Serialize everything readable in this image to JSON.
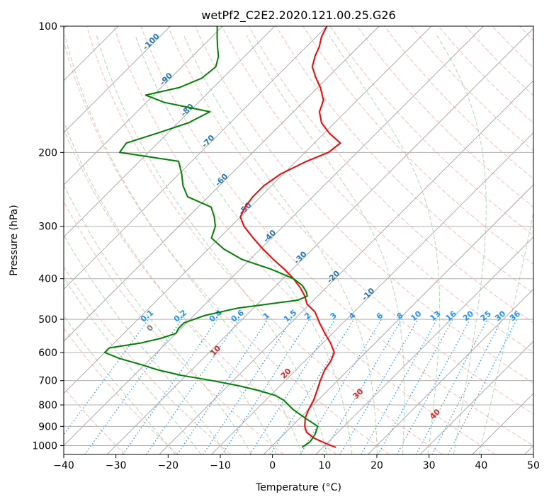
{
  "chart_data": {
    "type": "skew-t",
    "title": "wetPf2_C2E2.2020.121.00.25.G26",
    "xlabel": "Temperature (°C)",
    "ylabel": "Pressure (hPa)",
    "xlim": [
      -40,
      50
    ],
    "ylim": [
      1050,
      100
    ],
    "y_scale": "log",
    "x_ticks": [
      "−40",
      "−30",
      "−20",
      "−10",
      "0",
      "10",
      "20",
      "30",
      "40",
      "50"
    ],
    "y_ticks": [
      {
        "p": 100,
        "label": "100"
      },
      {
        "p": 200,
        "label": "200"
      },
      {
        "p": 300,
        "label": "300"
      },
      {
        "p": 400,
        "label": "400"
      },
      {
        "p": 500,
        "label": "500"
      },
      {
        "p": 600,
        "label": "600"
      },
      {
        "p": 700,
        "label": "700"
      },
      {
        "p": 800,
        "label": "800"
      },
      {
        "p": 900,
        "label": "900"
      },
      {
        "p": 1000,
        "label": "1000"
      }
    ],
    "grid": true,
    "colors": {
      "temperature": "#ff0000",
      "dewpoint": "#008000",
      "isotherm": "#aaaaaa",
      "dry_adiabat": "#fa8072",
      "moist_adiabat": "#90c890",
      "mixing_ratio": "#1e90ff",
      "isotherm_label": "#1f77b4",
      "theta_label": "#d62728",
      "mixing_label": "#1e90ff"
    },
    "isotherm_labels": [
      "-100",
      "-90",
      "-80",
      "-70",
      "-60",
      "-50",
      "-40",
      "-30",
      "-20",
      "-10"
    ],
    "isotherm_label_values": [
      -100,
      -90,
      -80,
      -70,
      -60,
      -50,
      -40,
      -30,
      -20,
      -10
    ],
    "theta_labels": [
      "0",
      "10",
      "20",
      "30",
      "40"
    ],
    "theta_label_values": [
      0,
      10,
      20,
      30,
      40
    ],
    "mixing_ratio_labels": [
      "0.1",
      "0.2",
      "0.4",
      "0.6",
      "1",
      "1.5",
      "2",
      "3",
      "4",
      "6",
      "8",
      "10",
      "13",
      "16",
      "20",
      "25",
      "30",
      "36"
    ],
    "mixing_ratio_values": [
      0.1,
      0.2,
      0.4,
      0.6,
      1,
      1.5,
      2,
      3,
      4,
      6,
      8,
      10,
      13,
      16,
      20,
      25,
      30,
      36
    ],
    "series": [
      {
        "key": "temperature",
        "p": [
          1010,
          990,
          960,
          930,
          900,
          860,
          820,
          780,
          740,
          700,
          660,
          630,
          600,
          570,
          540,
          510,
          480,
          460,
          440,
          420,
          400,
          380,
          360,
          340,
          320,
          300,
          285,
          270,
          255,
          240,
          225,
          210,
          200,
          190,
          180,
          170,
          160,
          150,
          140,
          132,
          125,
          118,
          112,
          106,
          100
        ],
        "t": [
          12.5,
          10.0,
          6.5,
          4.0,
          2.5,
          1.0,
          0.0,
          -0.8,
          -2.0,
          -3.3,
          -4.5,
          -5.0,
          -6.0,
          -8.5,
          -11.5,
          -14.5,
          -17.5,
          -20.5,
          -22.5,
          -25.0,
          -28.0,
          -31.5,
          -35.5,
          -39.5,
          -43.5,
          -47.5,
          -50.0,
          -51.0,
          -51.5,
          -51.5,
          -50.5,
          -48.0,
          -45.5,
          -45.0,
          -49.0,
          -52.5,
          -55.0,
          -56.5,
          -59.5,
          -62.5,
          -65.0,
          -66.5,
          -67.5,
          -69.0,
          -70.0
        ]
      },
      {
        "key": "dewpoint",
        "p": [
          1010,
          980,
          940,
          900,
          860,
          820,
          780,
          760,
          740,
          720,
          700,
          680,
          660,
          640,
          620,
          600,
          585,
          570,
          555,
          540,
          525,
          510,
          490,
          470,
          450,
          440,
          430,
          415,
          400,
          380,
          360,
          340,
          320,
          300,
          285,
          270,
          255,
          240,
          225,
          210,
          200,
          190,
          180,
          170,
          160,
          152,
          146,
          140,
          133,
          125,
          118,
          112,
          106,
          100
        ],
        "t": [
          6.0,
          6.5,
          6.0,
          5.0,
          1.0,
          -3.0,
          -6.5,
          -9.0,
          -13.0,
          -18.0,
          -24.0,
          -31.0,
          -36.5,
          -41.0,
          -46.0,
          -50.0,
          -50.0,
          -45.0,
          -42.0,
          -40.0,
          -40.5,
          -40.5,
          -38.0,
          -33.0,
          -23.0,
          -22.0,
          -23.0,
          -25.0,
          -28.0,
          -34.0,
          -41.5,
          -47.0,
          -51.5,
          -53.0,
          -55.0,
          -57.5,
          -64.0,
          -67.0,
          -69.5,
          -72.5,
          -85.5,
          -86.0,
          -82.0,
          -78.0,
          -76.0,
          -86.5,
          -91.5,
          -86.5,
          -84.0,
          -83.5,
          -85.0,
          -87.0,
          -89.0,
          -91.0
        ]
      }
    ]
  }
}
